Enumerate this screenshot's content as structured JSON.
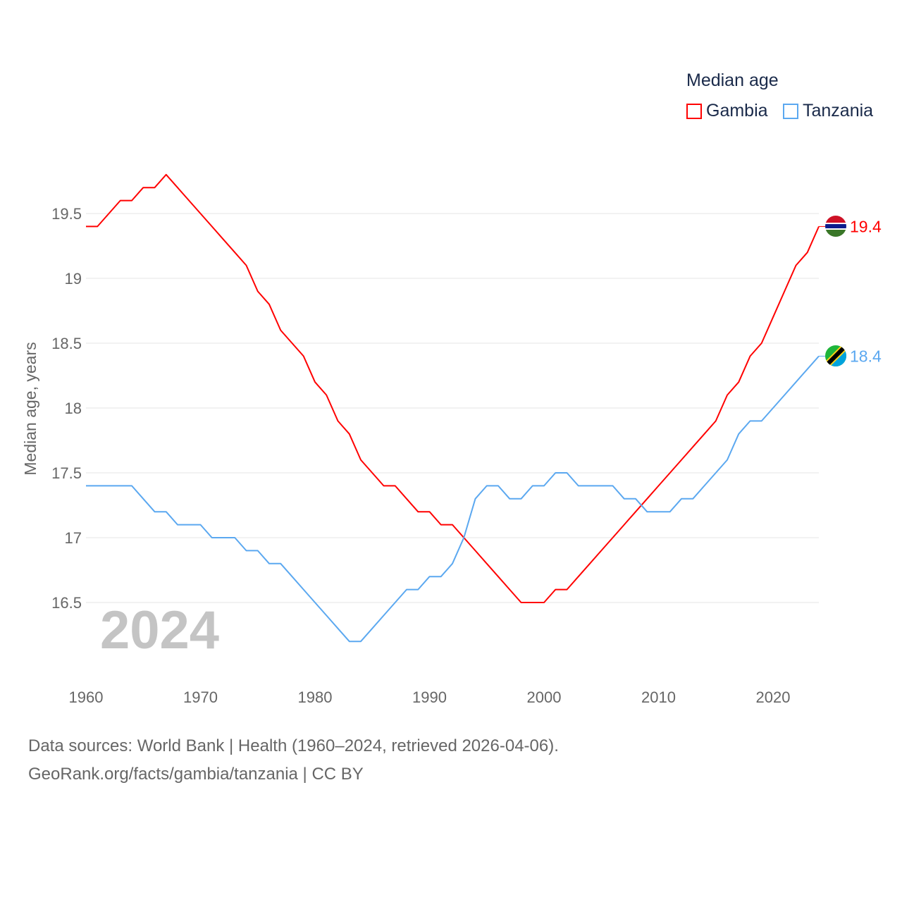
{
  "chart_data": {
    "type": "line",
    "title": "Median age",
    "xlabel": "",
    "ylabel": "Median age, years",
    "xlim": [
      1960,
      2024
    ],
    "ylim": [
      16.0,
      19.9
    ],
    "yticks": [
      "16.5",
      "17",
      "17.5",
      "18",
      "18.5",
      "19",
      "19.5"
    ],
    "xticks": [
      "1960",
      "1970",
      "1980",
      "1990",
      "2000",
      "2010",
      "2020"
    ],
    "grid": true,
    "legend_placement": "top-right",
    "year_label": "2024",
    "x": [
      1960,
      1961,
      1962,
      1963,
      1964,
      1965,
      1966,
      1967,
      1968,
      1969,
      1970,
      1971,
      1972,
      1973,
      1974,
      1975,
      1976,
      1977,
      1978,
      1979,
      1980,
      1981,
      1982,
      1983,
      1984,
      1985,
      1986,
      1987,
      1988,
      1989,
      1990,
      1991,
      1992,
      1993,
      1994,
      1995,
      1996,
      1997,
      1998,
      1999,
      2000,
      2001,
      2002,
      2003,
      2004,
      2005,
      2006,
      2007,
      2008,
      2009,
      2010,
      2011,
      2012,
      2013,
      2014,
      2015,
      2016,
      2017,
      2018,
      2019,
      2020,
      2021,
      2022,
      2023,
      2024
    ],
    "series": [
      {
        "name": "Gambia",
        "color": "#ff0000",
        "end_label": "19.4",
        "values": [
          19.4,
          19.4,
          19.5,
          19.6,
          19.6,
          19.7,
          19.7,
          19.8,
          19.7,
          19.6,
          19.5,
          19.4,
          19.3,
          19.2,
          19.1,
          18.9,
          18.8,
          18.6,
          18.5,
          18.4,
          18.2,
          18.1,
          17.9,
          17.8,
          17.6,
          17.5,
          17.4,
          17.4,
          17.3,
          17.2,
          17.2,
          17.1,
          17.1,
          17.0,
          16.9,
          16.8,
          16.7,
          16.6,
          16.5,
          16.5,
          16.5,
          16.6,
          16.6,
          16.7,
          16.8,
          16.9,
          17.0,
          17.1,
          17.2,
          17.3,
          17.4,
          17.5,
          17.6,
          17.7,
          17.8,
          17.9,
          18.1,
          18.2,
          18.4,
          18.5,
          18.7,
          18.9,
          19.1,
          19.2,
          19.4
        ]
      },
      {
        "name": "Tanzania",
        "color": "#5ba8f0",
        "end_label": "18.4",
        "values": [
          17.4,
          17.4,
          17.4,
          17.4,
          17.4,
          17.3,
          17.2,
          17.2,
          17.1,
          17.1,
          17.1,
          17.0,
          17.0,
          17.0,
          16.9,
          16.9,
          16.8,
          16.8,
          16.7,
          16.6,
          16.5,
          16.4,
          16.3,
          16.2,
          16.2,
          16.3,
          16.4,
          16.5,
          16.6,
          16.6,
          16.7,
          16.7,
          16.8,
          17.0,
          17.3,
          17.4,
          17.4,
          17.3,
          17.3,
          17.4,
          17.4,
          17.5,
          17.5,
          17.4,
          17.4,
          17.4,
          17.4,
          17.3,
          17.3,
          17.2,
          17.2,
          17.2,
          17.3,
          17.3,
          17.4,
          17.5,
          17.6,
          17.8,
          17.9,
          17.9,
          18.0,
          18.1,
          18.2,
          18.3,
          18.4
        ]
      }
    ]
  },
  "footer": {
    "line1": "Data sources: World Bank | Health (1960–2024, retrieved 2026-04-06).",
    "line2": "GeoRank.org/facts/gambia/tanzania | CC BY"
  }
}
